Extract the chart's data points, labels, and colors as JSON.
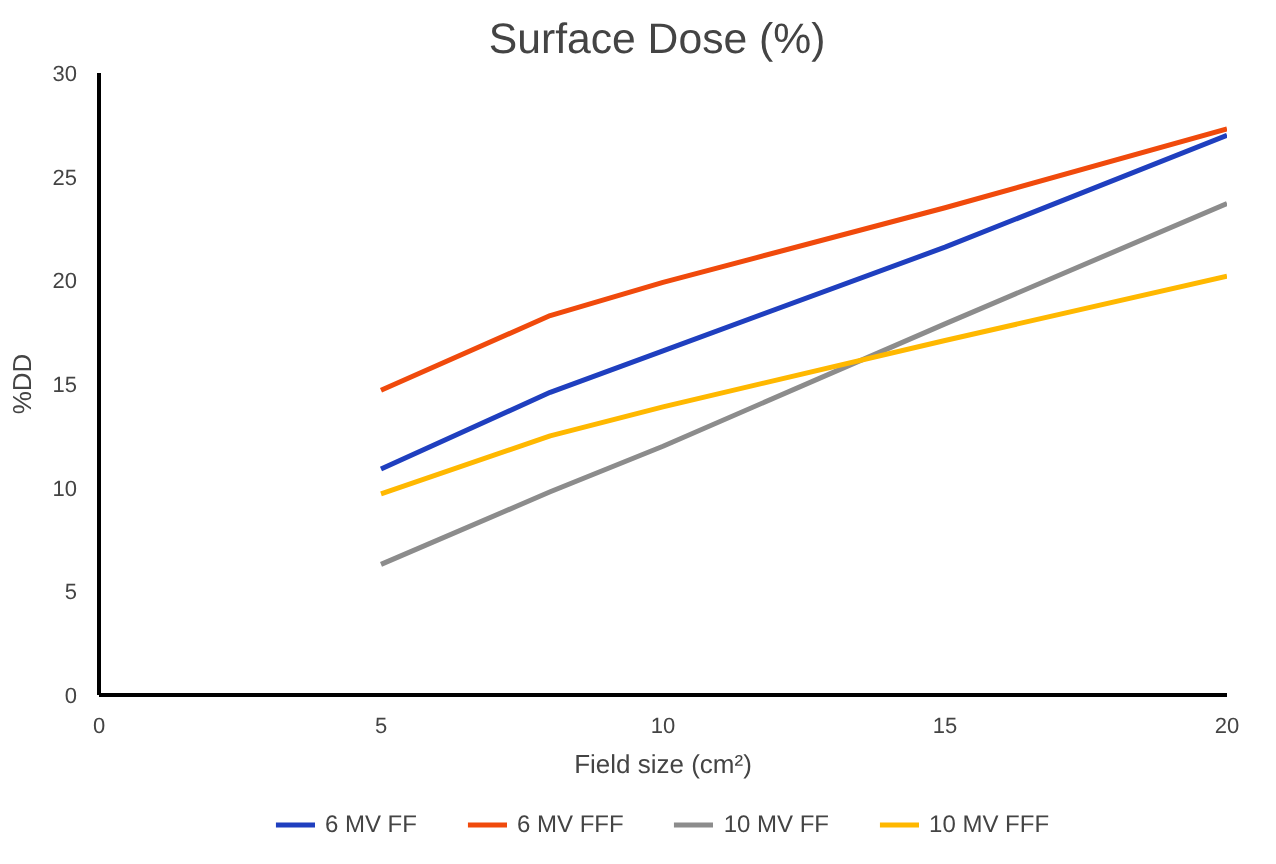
{
  "chart_data": {
    "type": "line",
    "title": "Surface Dose  (%)",
    "xlabel": "Field size (cm²)",
    "ylabel": "%DD",
    "x": [
      5,
      8,
      10,
      15,
      20
    ],
    "series": [
      {
        "name": "6 MV FF",
        "color": "#1f3fbf",
        "values": [
          10.9,
          14.6,
          16.6,
          21.6,
          27.0
        ]
      },
      {
        "name": "6 MV FFF",
        "color": "#f04a0c",
        "values": [
          14.7,
          18.3,
          19.9,
          23.5,
          27.3
        ]
      },
      {
        "name": "10 MV FF",
        "color": "#8c8c8c",
        "values": [
          6.3,
          9.8,
          12.0,
          17.9,
          23.7
        ]
      },
      {
        "name": "10 MV FFF",
        "color": "#ffb800",
        "values": [
          9.7,
          12.5,
          13.9,
          17.1,
          20.2
        ]
      }
    ],
    "xlim": [
      0,
      20
    ],
    "xticks": [
      0,
      5,
      10,
      15,
      20
    ],
    "ylim": [
      0,
      30
    ],
    "yticks": [
      0,
      5,
      10,
      15,
      20,
      25,
      30
    ],
    "grid": false,
    "legend": "bottom",
    "marker": "none",
    "line_style": "solid"
  }
}
